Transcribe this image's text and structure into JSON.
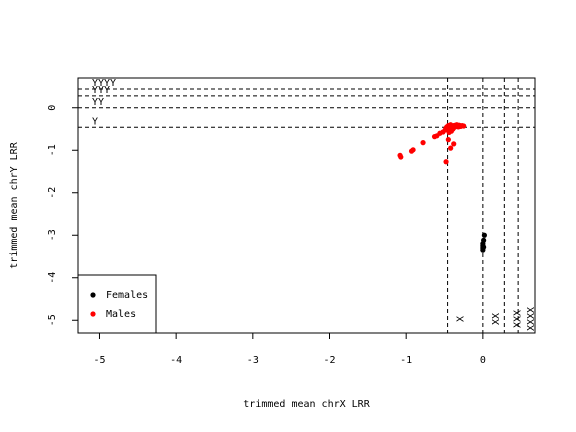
{
  "chart_data": {
    "type": "scatter",
    "xlabel": "trimmed mean chrX LRR",
    "ylabel": "trimmed mean chrY LRR",
    "xlim": [
      -5.28,
      0.68
    ],
    "ylim": [
      -5.3,
      0.7
    ],
    "x_ticks": [
      -5,
      -4,
      -3,
      -2,
      -1,
      0
    ],
    "y_ticks": [
      -5,
      -4,
      -3,
      -2,
      -1,
      0
    ],
    "x_tick_labels": [
      "-5",
      "-4",
      "-3",
      "-2",
      "-1",
      "0"
    ],
    "y_tick_labels": [
      "-5",
      "-4",
      "-3",
      "-2",
      "-1",
      "0"
    ],
    "grid": false,
    "x_reference_lines": [
      {
        "x": -0.46,
        "label": "X"
      },
      {
        "x": 0.0,
        "label": "XX"
      },
      {
        "x": 0.28,
        "label": "XXX"
      },
      {
        "x": 0.46,
        "label": "XXXX"
      }
    ],
    "y_reference_lines": [
      {
        "y": -0.46,
        "label": "Y"
      },
      {
        "y": 0.0,
        "label": "YY"
      },
      {
        "y": 0.28,
        "label": "YYY"
      },
      {
        "y": 0.44,
        "label": "YYYY"
      }
    ],
    "legend": {
      "position": "bottom-left",
      "entries": [
        {
          "label": "Females",
          "color": "#000000"
        },
        {
          "label": "Males",
          "color": "#ff0000"
        }
      ]
    },
    "series": [
      {
        "name": "Females",
        "color": "#000000",
        "points": [
          [
            0.02,
            -3.0
          ],
          [
            0.01,
            -3.12
          ],
          [
            0.0,
            -3.2
          ],
          [
            0.0,
            -3.25
          ],
          [
            0.0,
            -3.3
          ],
          [
            0.0,
            -3.35
          ],
          [
            0.01,
            -3.28
          ]
        ]
      },
      {
        "name": "Males",
        "color": "#ff0000",
        "points": [
          [
            -1.08,
            -1.12
          ],
          [
            -1.07,
            -1.16
          ],
          [
            -0.93,
            -1.02
          ],
          [
            -0.91,
            -0.99
          ],
          [
            -0.78,
            -0.82
          ],
          [
            -0.63,
            -0.68
          ],
          [
            -0.6,
            -0.66
          ],
          [
            -0.56,
            -0.6
          ],
          [
            -0.52,
            -0.57
          ],
          [
            -0.49,
            -0.52
          ],
          [
            -0.48,
            -0.48
          ],
          [
            -0.47,
            -0.45
          ],
          [
            -0.46,
            -0.5
          ],
          [
            -0.45,
            -0.42
          ],
          [
            -0.44,
            -0.58
          ],
          [
            -0.43,
            -0.47
          ],
          [
            -0.42,
            -0.4
          ],
          [
            -0.41,
            -0.55
          ],
          [
            -0.4,
            -0.44
          ],
          [
            -0.39,
            -0.5
          ],
          [
            -0.38,
            -0.42
          ],
          [
            -0.37,
            -0.46
          ],
          [
            -0.36,
            -0.41
          ],
          [
            -0.35,
            -0.44
          ],
          [
            -0.34,
            -0.4
          ],
          [
            -0.33,
            -0.43
          ],
          [
            -0.32,
            -0.45
          ],
          [
            -0.31,
            -0.41
          ],
          [
            -0.3,
            -0.42
          ],
          [
            -0.29,
            -0.44
          ],
          [
            -0.27,
            -0.42
          ],
          [
            -0.25,
            -0.43
          ],
          [
            -0.45,
            -0.75
          ],
          [
            -0.42,
            -0.95
          ],
          [
            -0.38,
            -0.85
          ],
          [
            -0.48,
            -1.27
          ]
        ]
      }
    ]
  }
}
